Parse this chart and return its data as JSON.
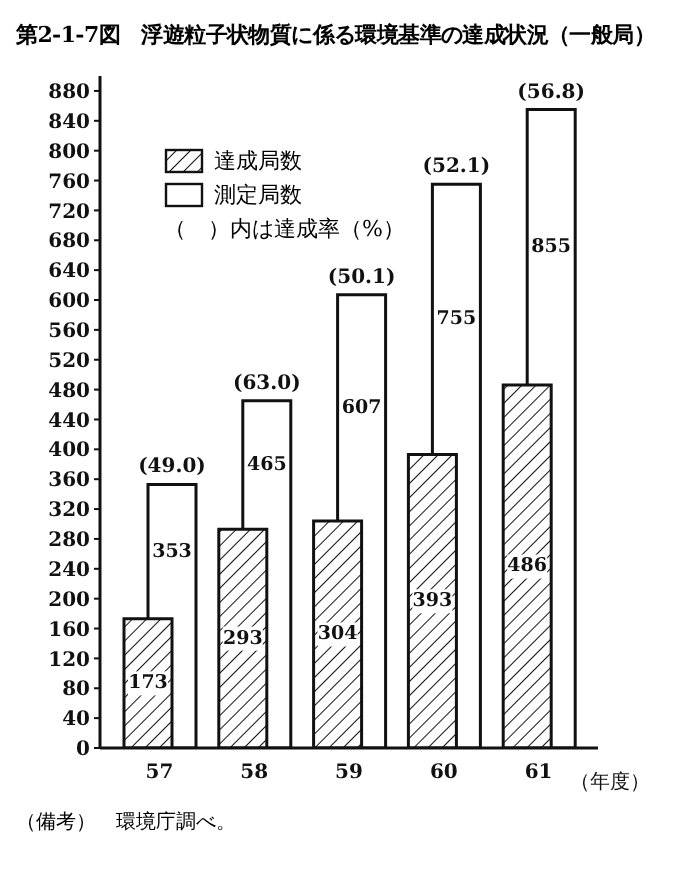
{
  "chart_data": {
    "type": "bar",
    "title": "第2-1-7図　浮遊粒子状物質に係る環境基準の達成状況（一般局）",
    "xlabel": "（年度）",
    "categories": [
      "57",
      "58",
      "59",
      "60",
      "61"
    ],
    "series": [
      {
        "name": "達成局数",
        "color": "#111111",
        "values": [
          173,
          293,
          304,
          393,
          486
        ]
      },
      {
        "name": "測定局数",
        "color": "#ffffff",
        "values": [
          353,
          465,
          607,
          755,
          855
        ]
      }
    ],
    "ylim": [
      0,
      900
    ],
    "yticks": [
      0,
      40,
      80,
      120,
      160,
      200,
      240,
      280,
      320,
      360,
      400,
      440,
      480,
      520,
      560,
      600,
      640,
      680,
      720,
      760,
      800,
      840,
      880
    ],
    "legend": "top left",
    "data_labels": true,
    "annotations": [
      "（　）内は達成率（%）",
      {
        "text": "(49.0)",
        "x": "57",
        "y": 353
      },
      {
        "text": "(63.0)",
        "x": "58",
        "y": 465
      },
      {
        "text": "(50.1)",
        "x": "59",
        "y": 607
      },
      {
        "text": "(52.1)",
        "x": "60",
        "y": 755
      },
      {
        "text": "(56.8)",
        "x": "61",
        "y": 855
      },
      "（備考）　環境庁調べ。"
    ]
  }
}
